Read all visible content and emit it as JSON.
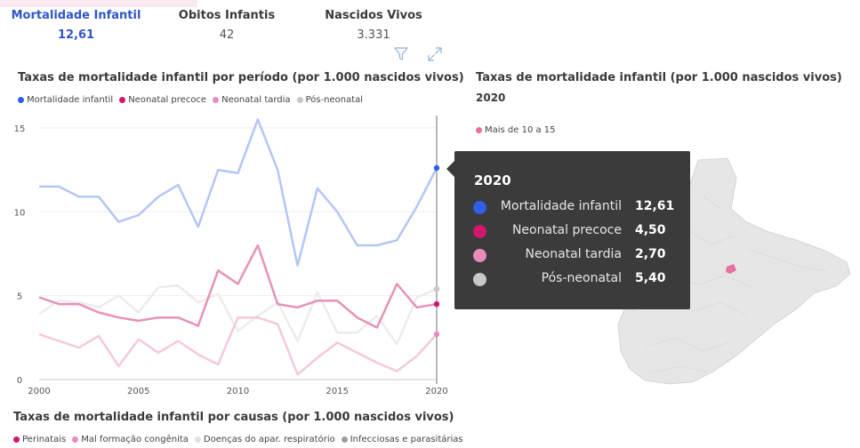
{
  "kpis": [
    {
      "label": "Mortalidade Infantil",
      "value": "12,61"
    },
    {
      "label": "Obitos Infantis",
      "value": "42"
    },
    {
      "label": "Nascidos Vivos",
      "value": "3.331"
    }
  ],
  "icons": {
    "filter": "filter-icon",
    "focus": "focus-mode-icon"
  },
  "colors": {
    "mortalidade_infantil": "#2f5fe8",
    "neonatal_precoce": "#d1166d",
    "neonatal_tardia": "#e98cbc",
    "pos_neonatal": "#c8c8c8",
    "map_highlight": "#e66fa3",
    "map_base": "#e6e6e6",
    "tooltip_bg": "#3b3b3b"
  },
  "line_chart": {
    "title": "Taxas de mortalidade infantil por período (por 1.000 nascidos vivos)",
    "legend": [
      "Mortalidade infantil",
      "Neonatal precoce",
      "Neonatal tardia",
      "Pós-neonatal"
    ]
  },
  "chart_data": [
    {
      "type": "line",
      "title": "Taxas de mortalidade infantil por período (por 1.000 nascidos vivos)",
      "xlabel": "",
      "ylabel": "",
      "xlim": [
        2000,
        2020
      ],
      "ylim": [
        0,
        16
      ],
      "x": [
        2000,
        2001,
        2002,
        2003,
        2004,
        2005,
        2006,
        2007,
        2008,
        2009,
        2010,
        2011,
        2012,
        2013,
        2014,
        2015,
        2016,
        2017,
        2018,
        2019,
        2020
      ],
      "x_ticks": [
        2000,
        2005,
        2010,
        2015,
        2020
      ],
      "y_ticks": [
        0,
        5,
        10,
        15
      ],
      "highlight_x": 2020,
      "grid": true,
      "legend_position": "top-left",
      "series": [
        {
          "name": "Mortalidade infantil",
          "values": [
            11.5,
            11.5,
            10.9,
            10.9,
            9.4,
            9.8,
            10.9,
            11.6,
            9.1,
            12.5,
            12.3,
            15.5,
            12.5,
            6.8,
            11.4,
            10.0,
            8.0,
            8.0,
            8.3,
            10.3,
            12.61
          ]
        },
        {
          "name": "Neonatal precoce",
          "values": [
            4.9,
            4.5,
            4.5,
            4.0,
            3.7,
            3.5,
            3.7,
            3.7,
            3.2,
            6.5,
            5.7,
            8.0,
            4.5,
            4.3,
            4.7,
            4.7,
            3.7,
            3.1,
            5.7,
            4.3,
            4.5
          ]
        },
        {
          "name": "Neonatal tardia",
          "values": [
            2.7,
            2.3,
            1.9,
            2.6,
            0.8,
            2.4,
            1.6,
            2.3,
            1.5,
            0.9,
            3.7,
            3.7,
            3.3,
            0.3,
            1.3,
            2.2,
            1.6,
            1.0,
            0.5,
            1.4,
            2.7
          ]
        },
        {
          "name": "Pós-neonatal",
          "values": [
            3.9,
            4.7,
            4.6,
            4.3,
            5.0,
            4.0,
            5.5,
            5.6,
            4.6,
            5.1,
            2.9,
            3.8,
            4.6,
            2.3,
            5.2,
            2.8,
            2.8,
            3.8,
            2.1,
            4.9,
            5.4
          ]
        }
      ]
    }
  ],
  "map_chart": {
    "title": "Taxas de mortalidade infantil (por 1.000 nascidos vivos)",
    "year": "2020",
    "legend": [
      "Mais de 10 a 15"
    ]
  },
  "tooltip": {
    "year": "2020",
    "rows": [
      {
        "name": "Mortalidade infantil",
        "value": "12,61"
      },
      {
        "name": "Neonatal precoce",
        "value": "4,50"
      },
      {
        "name": "Neonatal tardia",
        "value": "2,70"
      },
      {
        "name": "Pós-neonatal",
        "value": "5,40"
      }
    ]
  },
  "causes_chart": {
    "title": "Taxas de mortalidade infantil por causas  (por 1.000 nascidos vivos)",
    "legend": [
      "Perinatais",
      "Mal formação congênita",
      "Doenças do apar. respiratório",
      "Infecciosas e parasitárias"
    ],
    "legend_colors": [
      "#d1166d",
      "#e98cbc",
      "#e0e0e0",
      "#9e9e9e"
    ]
  }
}
